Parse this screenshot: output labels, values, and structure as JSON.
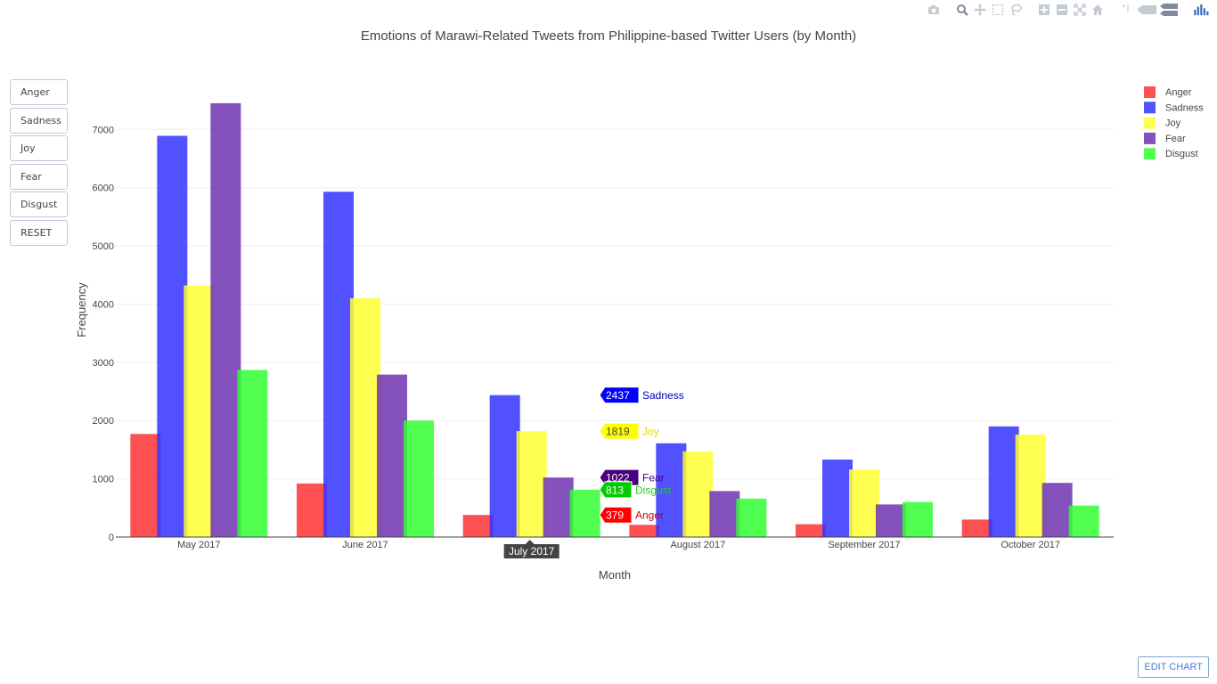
{
  "chart_data": {
    "type": "bar",
    "title": "Emotions of Marawi-Related Tweets from Philippine-based Twitter Users (by Month)",
    "xlabel": "Month",
    "ylabel": "Frequency",
    "ylim": [
      0,
      7800
    ],
    "yticks": [
      0,
      1000,
      2000,
      3000,
      4000,
      5000,
      6000,
      7000
    ],
    "grid": true,
    "legend_position": "top-right",
    "categories": [
      "May 2017",
      "June 2017",
      "July 2017",
      "August 2017",
      "September 2017",
      "October 2017"
    ],
    "series": [
      {
        "name": "Anger",
        "color": "#ff3333",
        "values": [
          1770,
          920,
          379,
          210,
          220,
          300
        ]
      },
      {
        "name": "Sadness",
        "color": "#3333ff",
        "values": [
          6890,
          5930,
          2437,
          1610,
          1330,
          1900
        ]
      },
      {
        "name": "Joy",
        "color": "#ffff33",
        "values": [
          4320,
          4100,
          1819,
          1470,
          1160,
          1760
        ]
      },
      {
        "name": "Fear",
        "color": "#7033b0",
        "values": [
          7450,
          2790,
          1022,
          790,
          560,
          930
        ]
      },
      {
        "name": "Disgust",
        "color": "#33ff33",
        "values": [
          2870,
          2000,
          813,
          660,
          600,
          540
        ]
      }
    ],
    "hover": {
      "category": "July 2017",
      "x_label": "July 2017",
      "tooltips": [
        {
          "value": "2437",
          "name": "Sadness",
          "box_color": "#0000ff",
          "text_color": "#ffffff",
          "name_color": "#0000aa"
        },
        {
          "value": "1819",
          "name": "Joy",
          "box_color": "#ffff00",
          "text_color": "#444444",
          "name_color": "#e6d800"
        },
        {
          "value": "1022",
          "name": "Fear",
          "box_color": "#4b0082",
          "text_color": "#ffffff",
          "name_color": "#4b0082"
        },
        {
          "value": "813",
          "name": "Disgust",
          "box_color": "#00cc00",
          "text_color": "#ffffff",
          "name_color": "#22cc22"
        },
        {
          "value": "379",
          "name": "Anger",
          "box_color": "#ff0000",
          "text_color": "#ffffff",
          "name_color": "#cc0000"
        }
      ]
    }
  },
  "buttons": [
    "Anger",
    "Sadness",
    "Joy",
    "Fear",
    "Disgust",
    "RESET"
  ],
  "edit_chart_label": "EDIT CHART",
  "modebar_icons": [
    "camera-icon",
    "zoom-icon",
    "pan-icon",
    "box-select-icon",
    "lasso-icon",
    "zoom-in-icon",
    "zoom-out-icon",
    "autoscale-icon",
    "home-icon",
    "spike-lines-icon",
    "hover-closest-icon",
    "hover-compare-icon",
    "plotly-logo-icon"
  ]
}
